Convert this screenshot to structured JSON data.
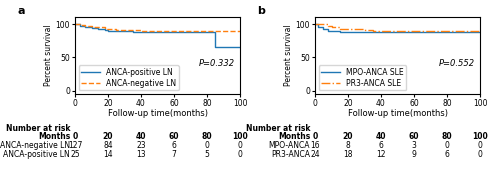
{
  "chart_data": [
    {
      "type": "step",
      "title": "a",
      "x_label": "Follow-up time(months)",
      "y_label": "Percent survival",
      "annotation": "P=0.332",
      "xlim": [
        0,
        100
      ],
      "ylim": [
        -5,
        110
      ],
      "xticks": [
        0,
        20,
        40,
        60,
        80,
        100
      ],
      "yticks": [
        0,
        50,
        100
      ],
      "legend": "lower left",
      "x": [
        0,
        3,
        6,
        10,
        14,
        18,
        20,
        25,
        30,
        35,
        40,
        45,
        50,
        55,
        60,
        65,
        70,
        75,
        80,
        85,
        90,
        95,
        100
      ],
      "series": [
        {
          "name": "ANCA-positive LN",
          "line_style": "solid",
          "values": [
            100,
            97,
            96,
            94,
            92,
            91,
            90,
            89.5,
            89,
            88.5,
            88,
            88,
            88,
            88,
            88,
            88,
            88,
            88,
            88,
            65,
            65,
            65,
            65
          ]
        },
        {
          "name": "ANCA-negative LN",
          "line_style": "dashed",
          "values": [
            100,
            98,
            97,
            96,
            95,
            93,
            92,
            91.5,
            91,
            90.5,
            90,
            90,
            90,
            90,
            90,
            90,
            90,
            90,
            90,
            90,
            90,
            90,
            90
          ]
        }
      ],
      "risk_table": {
        "title": "Number at risk",
        "label": "Months",
        "columns": [
          0,
          20,
          40,
          60,
          80,
          100
        ],
        "rows": [
          {
            "name": "ANCA-negative LN",
            "values": [
              127,
              84,
              23,
              6,
              0,
              0
            ]
          },
          {
            "name": "ANCA-positive LN",
            "values": [
              25,
              14,
              13,
              7,
              5,
              0
            ]
          }
        ]
      }
    },
    {
      "type": "step",
      "title": "b",
      "x_label": "Follow-up time(months)",
      "y_label": "Percent survival",
      "annotation": "P=0.552",
      "xlim": [
        0,
        100
      ],
      "ylim": [
        -5,
        110
      ],
      "xticks": [
        0,
        20,
        40,
        60,
        80,
        100
      ],
      "yticks": [
        0,
        50,
        100
      ],
      "legend": "lower left",
      "x": [
        0,
        2,
        5,
        8,
        10,
        15,
        20,
        25,
        30,
        35,
        40,
        45,
        50,
        55,
        60,
        65,
        70,
        75,
        80,
        85,
        90,
        95,
        100
      ],
      "series": [
        {
          "name": "MPO-ANCA SLE",
          "line_style": "solid",
          "values": [
            100,
            96,
            93,
            90,
            89,
            88.5,
            88,
            88,
            88,
            88,
            88,
            88,
            88,
            88,
            88,
            88,
            88,
            88,
            88,
            88,
            88,
            88,
            88
          ]
        },
        {
          "name": "PR3-ANCA SLE",
          "line_style": "dashdot",
          "values": [
            100,
            100,
            100,
            97,
            95,
            93,
            93,
            92,
            91,
            90,
            89.5,
            89,
            89,
            89,
            89,
            89,
            89,
            89,
            89,
            89,
            89,
            89,
            89
          ]
        }
      ],
      "risk_table": {
        "title": "Number at risk",
        "label": "Months",
        "columns": [
          0,
          20,
          40,
          60,
          80,
          100
        ],
        "rows": [
          {
            "name": "MPO-ANCA",
            "values": [
              16,
              8,
              6,
              3,
              0,
              0
            ]
          },
          {
            "name": "PR3-ANCA",
            "values": [
              24,
              18,
              12,
              9,
              6,
              0
            ]
          }
        ]
      }
    }
  ]
}
